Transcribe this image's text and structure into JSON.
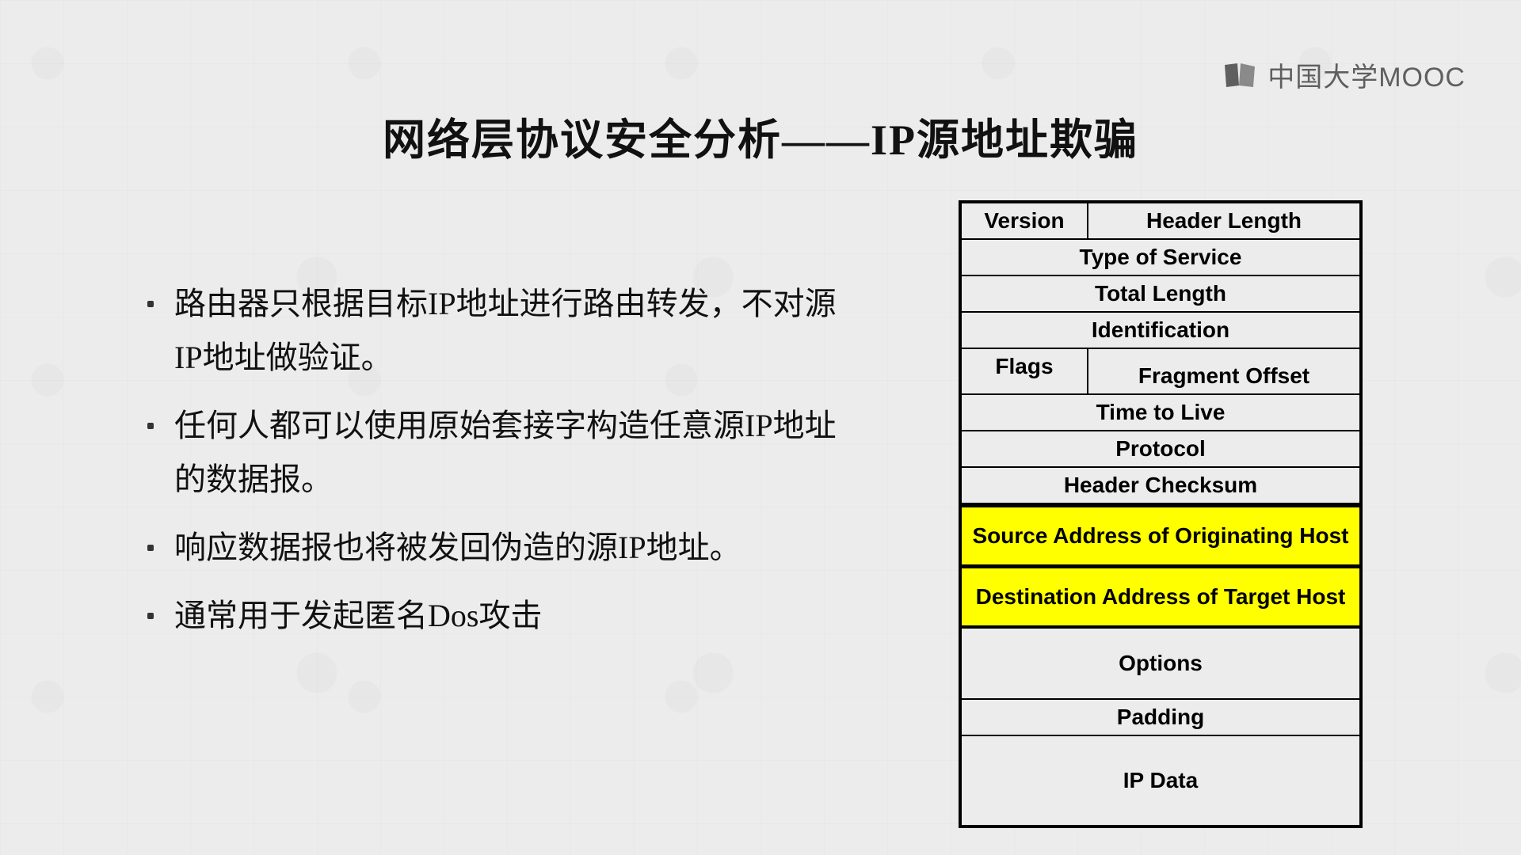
{
  "watermark": {
    "text": "中国大学MOOC"
  },
  "title": "网络层协议安全分析——IP源地址欺骗",
  "bullets": [
    "路由器只根据目标IP地址进行路由转发，不对源IP地址做验证。",
    "任何人都可以使用原始套接字构造任意源IP地址的数据报。",
    "响应数据报也将被发回伪造的源IP地址。",
    "通常用于发起匿名Dos攻击"
  ],
  "ip_header": {
    "type": "table",
    "border_color": "#000000",
    "background_color": "#ececec",
    "highlight_color": "#ffff00",
    "font_family": "Arial",
    "font_weight": "bold",
    "font_size_pt": 21,
    "rows": [
      {
        "cells": [
          "Version",
          "Header Length"
        ],
        "split": true
      },
      {
        "cells": [
          "Type of Service"
        ]
      },
      {
        "cells": [
          "Total Length"
        ]
      },
      {
        "cells": [
          "Identification"
        ]
      },
      {
        "cells": [
          "Flags",
          "Fragment Offset"
        ],
        "split": true,
        "flagsRow": true
      },
      {
        "cells": [
          "Time to Live"
        ]
      },
      {
        "cells": [
          "Protocol"
        ]
      },
      {
        "cells": [
          "Header Checksum"
        ]
      },
      {
        "cells": [
          "Source Address of Originating Host"
        ],
        "highlight": true,
        "tall": true
      },
      {
        "cells": [
          "Destination Address of Target Host"
        ],
        "highlight": true,
        "tall": true
      },
      {
        "cells": [
          "Options"
        ],
        "taller": true
      },
      {
        "cells": [
          "Padding"
        ]
      },
      {
        "cells": [
          "IP Data"
        ],
        "data": true
      }
    ]
  },
  "colors": {
    "slide_bg": "#ececec",
    "text": "#111111",
    "watermark": "#5f5f5f"
  }
}
